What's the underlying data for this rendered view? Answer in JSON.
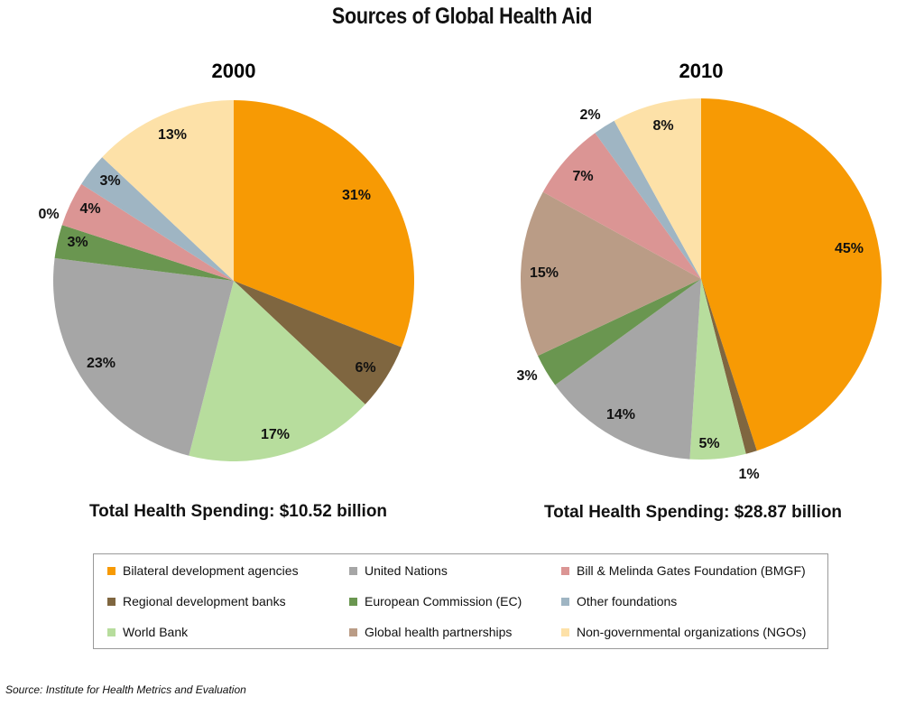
{
  "title": "Sources of Global Health Aid",
  "colors": {
    "bilateral": "#F79A04",
    "regional": "#7F6640",
    "world_bank": "#B7DD9D",
    "un": "#A6A6A6",
    "ec": "#6A9650",
    "bmgf": "#DB9594",
    "other_foundations": "#9FB5C3",
    "ngos": "#FDE1A8",
    "ghp": "#BA9C86"
  },
  "legend": [
    {
      "key": "bilateral",
      "label": "Bilateral development agencies"
    },
    {
      "key": "regional",
      "label": "Regional development banks"
    },
    {
      "key": "world_bank",
      "label": "World Bank"
    },
    {
      "key": "un",
      "label": "United Nations"
    },
    {
      "key": "ec",
      "label": "European Commission (EC)"
    },
    {
      "key": "ghp",
      "label": "Global health partnerships"
    },
    {
      "key": "bmgf",
      "label": "Bill & Melinda Gates Foundation (BMGF)"
    },
    {
      "key": "other_foundations",
      "label": "Other foundations"
    },
    {
      "key": "ngos",
      "label": "Non-governmental organizations (NGOs)"
    }
  ],
  "source": "Source: Institute for Health Metrics and Evaluation",
  "chart_data": [
    {
      "type": "pie",
      "title": "2000",
      "total_label": "Total Health Spending: $10.52 billion",
      "slices": [
        {
          "key": "bilateral",
          "value": 31,
          "label": "31%"
        },
        {
          "key": "regional",
          "value": 6,
          "label": "6%"
        },
        {
          "key": "world_bank",
          "value": 17,
          "label": "17%"
        },
        {
          "key": "un",
          "value": 23,
          "label": "23%"
        },
        {
          "key": "ec",
          "value": 3,
          "label": "3%"
        },
        {
          "key": "ghp",
          "value": 0,
          "label": "0%"
        },
        {
          "key": "bmgf",
          "value": 4,
          "label": "4%"
        },
        {
          "key": "other_foundations",
          "value": 3,
          "label": "3%"
        },
        {
          "key": "ngos",
          "value": 13,
          "label": "13%"
        }
      ]
    },
    {
      "type": "pie",
      "title": "2010",
      "total_label": "Total Health Spending: $28.87 billion",
      "slices": [
        {
          "key": "bilateral",
          "value": 45,
          "label": "45%"
        },
        {
          "key": "regional",
          "value": 1,
          "label": "1%"
        },
        {
          "key": "world_bank",
          "value": 5,
          "label": "5%"
        },
        {
          "key": "un",
          "value": 14,
          "label": "14%"
        },
        {
          "key": "ec",
          "value": 3,
          "label": "3%"
        },
        {
          "key": "ghp",
          "value": 15,
          "label": "15%"
        },
        {
          "key": "bmgf",
          "value": 7,
          "label": "7%"
        },
        {
          "key": "other_foundations",
          "value": 2,
          "label": "2%"
        },
        {
          "key": "ngos",
          "value": 8,
          "label": "8%"
        }
      ]
    }
  ]
}
